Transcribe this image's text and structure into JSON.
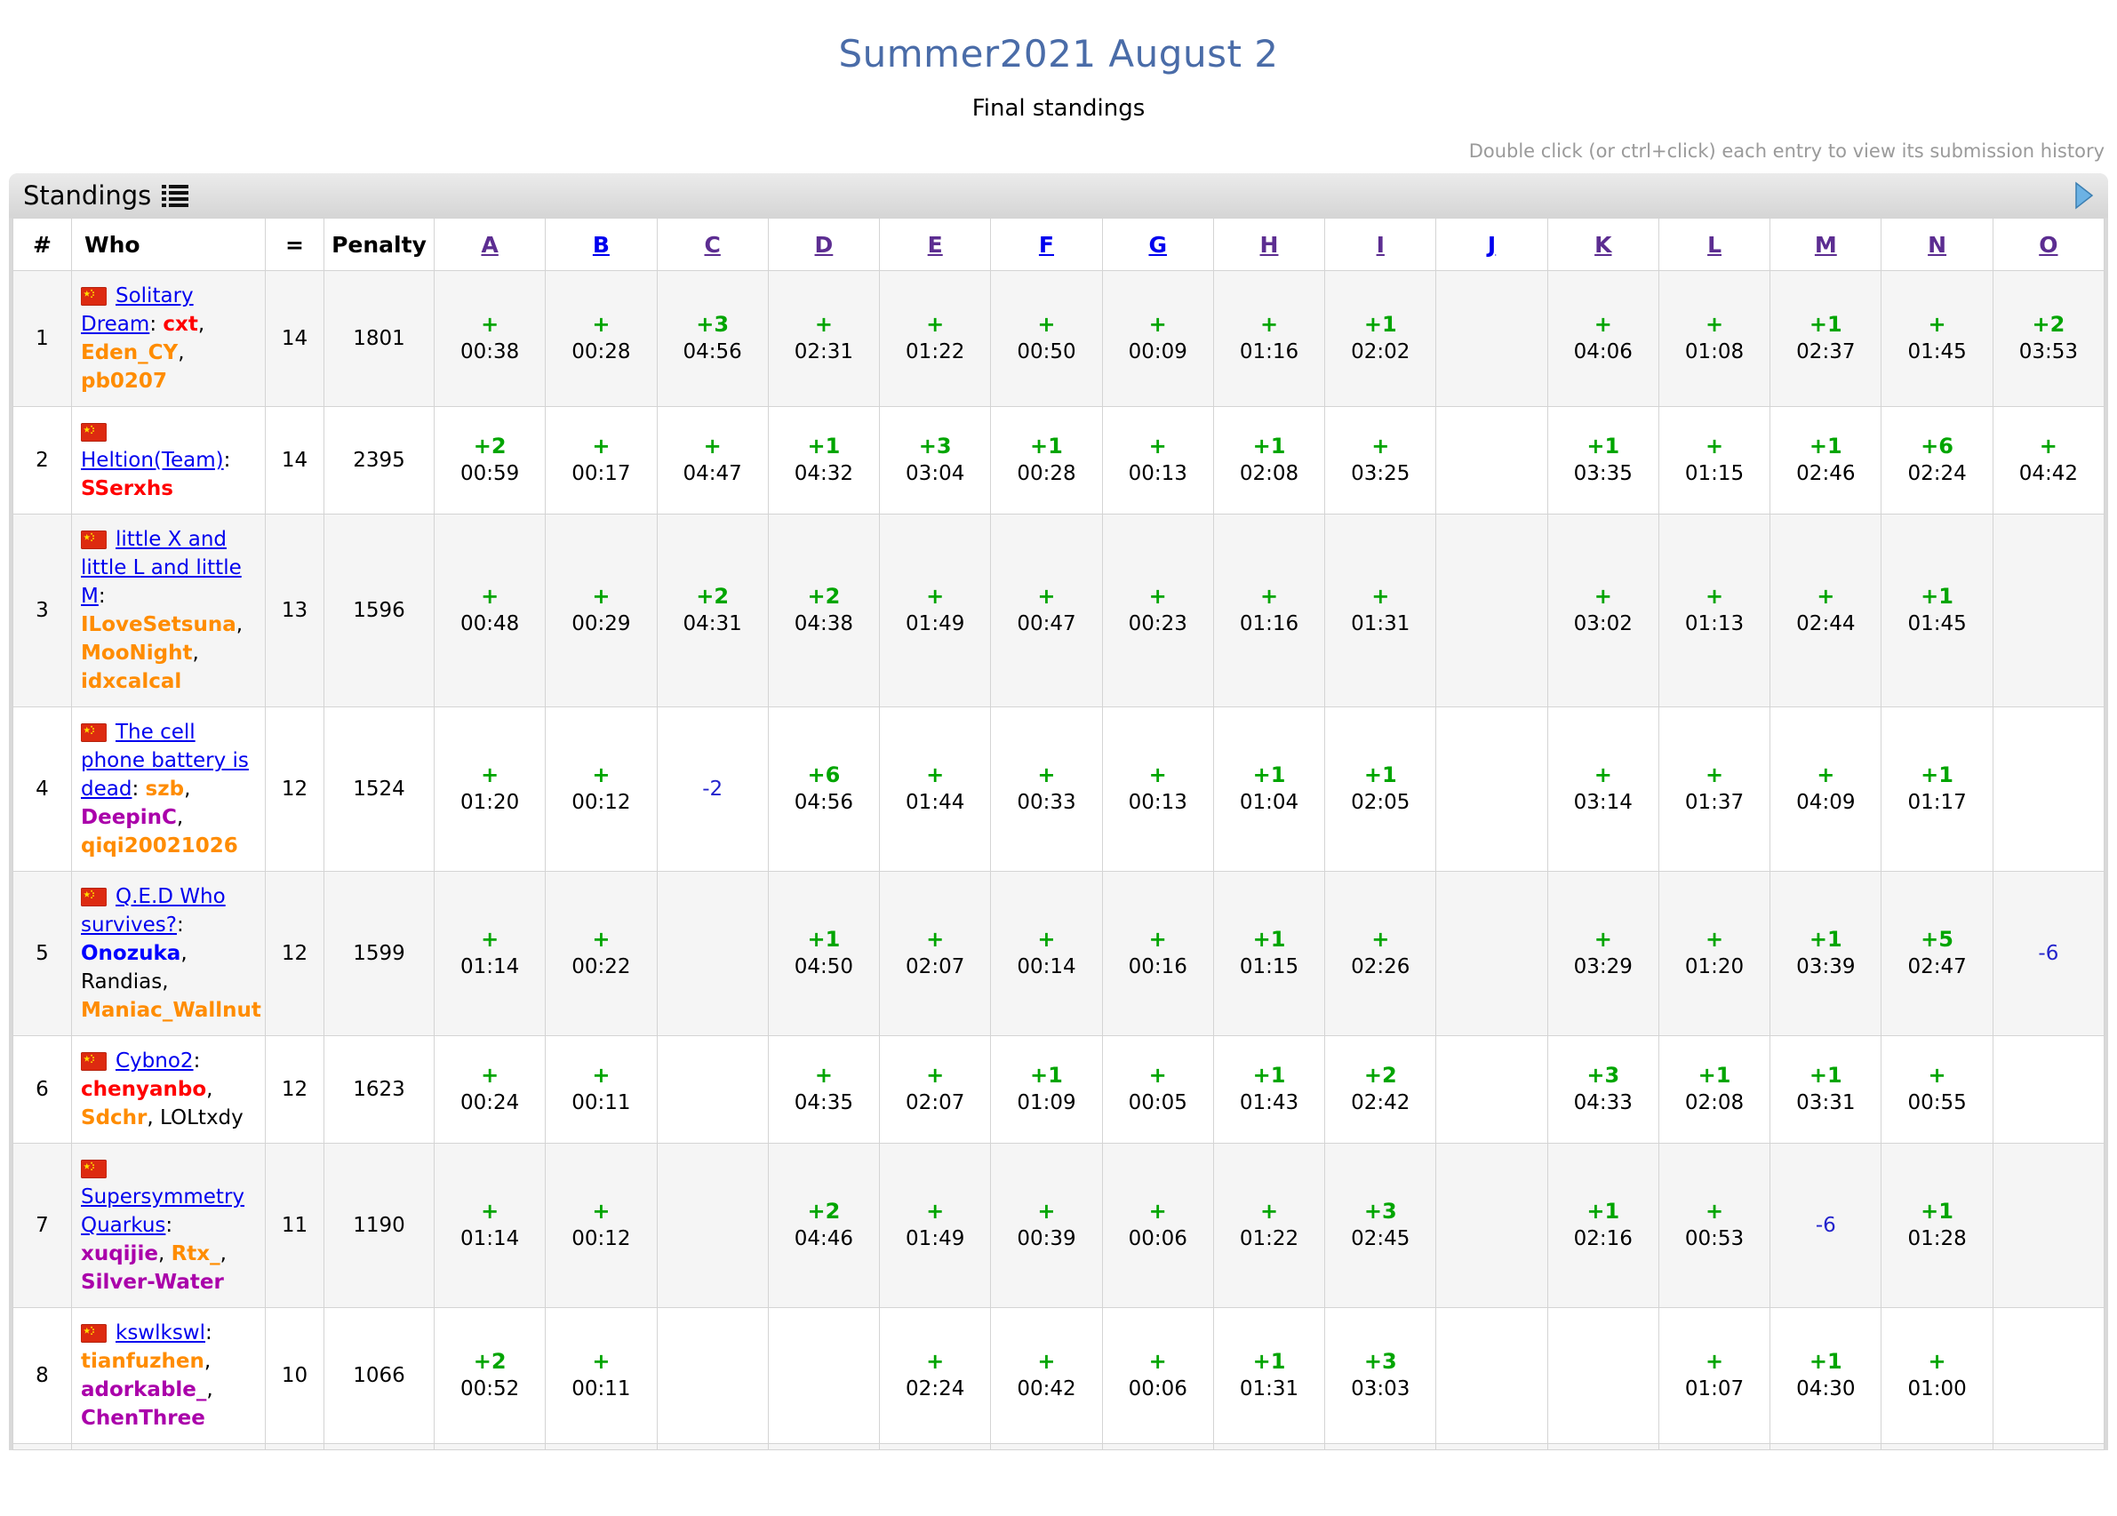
{
  "page": {
    "title": "Summer2021 August 2",
    "subtitle": "Final standings",
    "hint": "Double click (or ctrl+click) each entry to view its submission history"
  },
  "standings": {
    "caption": "Standings",
    "caption_icon": "list-icon",
    "nav_icon": "arrow-right-icon",
    "columns": {
      "rank": "#",
      "who": "Who",
      "solved": "=",
      "penalty": "Penalty"
    },
    "problems": [
      {
        "label": "A",
        "link_state": "visited"
      },
      {
        "label": "B",
        "link_state": "unvisited"
      },
      {
        "label": "C",
        "link_state": "visited"
      },
      {
        "label": "D",
        "link_state": "visited"
      },
      {
        "label": "E",
        "link_state": "visited"
      },
      {
        "label": "F",
        "link_state": "unvisited"
      },
      {
        "label": "G",
        "link_state": "unvisited"
      },
      {
        "label": "H",
        "link_state": "visited"
      },
      {
        "label": "I",
        "link_state": "visited"
      },
      {
        "label": "J",
        "link_state": "unvisited"
      },
      {
        "label": "K",
        "link_state": "visited"
      },
      {
        "label": "L",
        "link_state": "visited"
      },
      {
        "label": "M",
        "link_state": "visited"
      },
      {
        "label": "N",
        "link_state": "visited"
      },
      {
        "label": "O",
        "link_state": "visited"
      }
    ],
    "colors": {
      "title_blue": "#4a6ca8",
      "accepted_green": "#00a500",
      "rejected_blue": "#2323cc",
      "link_blue": "#0000ee",
      "visited_purple": "#5c2d91",
      "member_red": "#ff0000",
      "member_orange": "#ff8c00",
      "member_blue": "#0000ff",
      "member_violet": "#aa00aa",
      "member_black": "#000000",
      "flag": "china"
    },
    "rows": [
      {
        "rank": "1",
        "team": "Solitary Dream",
        "solved": "14",
        "penalty": "1801",
        "members": [
          {
            "name": "cxt",
            "color": "red"
          },
          {
            "name": "Eden_CY",
            "color": "orange"
          },
          {
            "name": "pb0207",
            "color": "orange"
          }
        ],
        "cells": [
          {
            "status": "ok",
            "tries": "+",
            "time": "00:38"
          },
          {
            "status": "ok",
            "tries": "+",
            "time": "00:28"
          },
          {
            "status": "ok",
            "tries": "+3",
            "time": "04:56"
          },
          {
            "status": "ok",
            "tries": "+",
            "time": "02:31"
          },
          {
            "status": "ok",
            "tries": "+",
            "time": "01:22"
          },
          {
            "status": "ok",
            "tries": "+",
            "time": "00:50"
          },
          {
            "status": "ok",
            "tries": "+",
            "time": "00:09"
          },
          {
            "status": "ok",
            "tries": "+",
            "time": "01:16"
          },
          {
            "status": "ok",
            "tries": "+1",
            "time": "02:02"
          },
          {
            "status": "none",
            "tries": "",
            "time": ""
          },
          {
            "status": "ok",
            "tries": "+",
            "time": "04:06"
          },
          {
            "status": "ok",
            "tries": "+",
            "time": "01:08"
          },
          {
            "status": "ok",
            "tries": "+1",
            "time": "02:37"
          },
          {
            "status": "ok",
            "tries": "+",
            "time": "01:45"
          },
          {
            "status": "ok",
            "tries": "+2",
            "time": "03:53"
          }
        ]
      },
      {
        "rank": "2",
        "team": "Heltion(Team)",
        "solved": "14",
        "penalty": "2395",
        "members": [
          {
            "name": "SSerxhs",
            "color": "red"
          }
        ],
        "cells": [
          {
            "status": "ok",
            "tries": "+2",
            "time": "00:59"
          },
          {
            "status": "ok",
            "tries": "+",
            "time": "00:17"
          },
          {
            "status": "ok",
            "tries": "+",
            "time": "04:47"
          },
          {
            "status": "ok",
            "tries": "+1",
            "time": "04:32"
          },
          {
            "status": "ok",
            "tries": "+3",
            "time": "03:04"
          },
          {
            "status": "ok",
            "tries": "+1",
            "time": "00:28"
          },
          {
            "status": "ok",
            "tries": "+",
            "time": "00:13"
          },
          {
            "status": "ok",
            "tries": "+1",
            "time": "02:08"
          },
          {
            "status": "ok",
            "tries": "+",
            "time": "03:25"
          },
          {
            "status": "none",
            "tries": "",
            "time": ""
          },
          {
            "status": "ok",
            "tries": "+1",
            "time": "03:35"
          },
          {
            "status": "ok",
            "tries": "+",
            "time": "01:15"
          },
          {
            "status": "ok",
            "tries": "+1",
            "time": "02:46"
          },
          {
            "status": "ok",
            "tries": "+6",
            "time": "02:24"
          },
          {
            "status": "ok",
            "tries": "+",
            "time": "04:42"
          }
        ]
      },
      {
        "rank": "3",
        "team": "little X and little L and little M",
        "solved": "13",
        "penalty": "1596",
        "members": [
          {
            "name": "ILoveSetsuna",
            "color": "orange"
          },
          {
            "name": "MooNight",
            "color": "orange"
          },
          {
            "name": "idxcalcal",
            "color": "orange"
          }
        ],
        "cells": [
          {
            "status": "ok",
            "tries": "+",
            "time": "00:48"
          },
          {
            "status": "ok",
            "tries": "+",
            "time": "00:29"
          },
          {
            "status": "ok",
            "tries": "+2",
            "time": "04:31"
          },
          {
            "status": "ok",
            "tries": "+2",
            "time": "04:38"
          },
          {
            "status": "ok",
            "tries": "+",
            "time": "01:49"
          },
          {
            "status": "ok",
            "tries": "+",
            "time": "00:47"
          },
          {
            "status": "ok",
            "tries": "+",
            "time": "00:23"
          },
          {
            "status": "ok",
            "tries": "+",
            "time": "01:16"
          },
          {
            "status": "ok",
            "tries": "+",
            "time": "01:31"
          },
          {
            "status": "none",
            "tries": "",
            "time": ""
          },
          {
            "status": "ok",
            "tries": "+",
            "time": "03:02"
          },
          {
            "status": "ok",
            "tries": "+",
            "time": "01:13"
          },
          {
            "status": "ok",
            "tries": "+",
            "time": "02:44"
          },
          {
            "status": "ok",
            "tries": "+1",
            "time": "01:45"
          },
          {
            "status": "none",
            "tries": "",
            "time": ""
          }
        ]
      },
      {
        "rank": "4",
        "team": "The cell phone battery is dead",
        "solved": "12",
        "penalty": "1524",
        "members": [
          {
            "name": "szb",
            "color": "orange"
          },
          {
            "name": "DeepinC",
            "color": "violet"
          },
          {
            "name": "qiqi20021026",
            "color": "orange"
          }
        ],
        "cells": [
          {
            "status": "ok",
            "tries": "+",
            "time": "01:20"
          },
          {
            "status": "ok",
            "tries": "+",
            "time": "00:12"
          },
          {
            "status": "fail",
            "tries": "-2",
            "time": ""
          },
          {
            "status": "ok",
            "tries": "+6",
            "time": "04:56"
          },
          {
            "status": "ok",
            "tries": "+",
            "time": "01:44"
          },
          {
            "status": "ok",
            "tries": "+",
            "time": "00:33"
          },
          {
            "status": "ok",
            "tries": "+",
            "time": "00:13"
          },
          {
            "status": "ok",
            "tries": "+1",
            "time": "01:04"
          },
          {
            "status": "ok",
            "tries": "+1",
            "time": "02:05"
          },
          {
            "status": "none",
            "tries": "",
            "time": ""
          },
          {
            "status": "ok",
            "tries": "+",
            "time": "03:14"
          },
          {
            "status": "ok",
            "tries": "+",
            "time": "01:37"
          },
          {
            "status": "ok",
            "tries": "+",
            "time": "04:09"
          },
          {
            "status": "ok",
            "tries": "+1",
            "time": "01:17"
          },
          {
            "status": "none",
            "tries": "",
            "time": ""
          }
        ]
      },
      {
        "rank": "5",
        "team": "Q.E.D Who survives?",
        "solved": "12",
        "penalty": "1599",
        "members": [
          {
            "name": "Onozuka",
            "color": "blue"
          },
          {
            "name": "Randias",
            "color": "black"
          },
          {
            "name": "Maniac_Wallnut",
            "color": "orange"
          }
        ],
        "cells": [
          {
            "status": "ok",
            "tries": "+",
            "time": "01:14"
          },
          {
            "status": "ok",
            "tries": "+",
            "time": "00:22"
          },
          {
            "status": "none",
            "tries": "",
            "time": ""
          },
          {
            "status": "ok",
            "tries": "+1",
            "time": "04:50"
          },
          {
            "status": "ok",
            "tries": "+",
            "time": "02:07"
          },
          {
            "status": "ok",
            "tries": "+",
            "time": "00:14"
          },
          {
            "status": "ok",
            "tries": "+",
            "time": "00:16"
          },
          {
            "status": "ok",
            "tries": "+1",
            "time": "01:15"
          },
          {
            "status": "ok",
            "tries": "+",
            "time": "02:26"
          },
          {
            "status": "none",
            "tries": "",
            "time": ""
          },
          {
            "status": "ok",
            "tries": "+",
            "time": "03:29"
          },
          {
            "status": "ok",
            "tries": "+",
            "time": "01:20"
          },
          {
            "status": "ok",
            "tries": "+1",
            "time": "03:39"
          },
          {
            "status": "ok",
            "tries": "+5",
            "time": "02:47"
          },
          {
            "status": "fail",
            "tries": "-6",
            "time": ""
          }
        ]
      },
      {
        "rank": "6",
        "team": "Cybno2",
        "solved": "12",
        "penalty": "1623",
        "members": [
          {
            "name": "chenyanbo",
            "color": "red"
          },
          {
            "name": "Sdchr",
            "color": "orange"
          },
          {
            "name": "LOLtxdy",
            "color": "black"
          }
        ],
        "cells": [
          {
            "status": "ok",
            "tries": "+",
            "time": "00:24"
          },
          {
            "status": "ok",
            "tries": "+",
            "time": "00:11"
          },
          {
            "status": "none",
            "tries": "",
            "time": ""
          },
          {
            "status": "ok",
            "tries": "+",
            "time": "04:35"
          },
          {
            "status": "ok",
            "tries": "+",
            "time": "02:07"
          },
          {
            "status": "ok",
            "tries": "+1",
            "time": "01:09"
          },
          {
            "status": "ok",
            "tries": "+",
            "time": "00:05"
          },
          {
            "status": "ok",
            "tries": "+1",
            "time": "01:43"
          },
          {
            "status": "ok",
            "tries": "+2",
            "time": "02:42"
          },
          {
            "status": "none",
            "tries": "",
            "time": ""
          },
          {
            "status": "ok",
            "tries": "+3",
            "time": "04:33"
          },
          {
            "status": "ok",
            "tries": "+1",
            "time": "02:08"
          },
          {
            "status": "ok",
            "tries": "+1",
            "time": "03:31"
          },
          {
            "status": "ok",
            "tries": "+",
            "time": "00:55"
          },
          {
            "status": "none",
            "tries": "",
            "time": ""
          }
        ]
      },
      {
        "rank": "7",
        "team": "Supersymmetry Quarkus",
        "solved": "11",
        "penalty": "1190",
        "members": [
          {
            "name": "xuqijie",
            "color": "violet"
          },
          {
            "name": "Rtx_",
            "color": "orange"
          },
          {
            "name": "Silver-Water",
            "color": "violet"
          }
        ],
        "cells": [
          {
            "status": "ok",
            "tries": "+",
            "time": "01:14"
          },
          {
            "status": "ok",
            "tries": "+",
            "time": "00:12"
          },
          {
            "status": "none",
            "tries": "",
            "time": ""
          },
          {
            "status": "ok",
            "tries": "+2",
            "time": "04:46"
          },
          {
            "status": "ok",
            "tries": "+",
            "time": "01:49"
          },
          {
            "status": "ok",
            "tries": "+",
            "time": "00:39"
          },
          {
            "status": "ok",
            "tries": "+",
            "time": "00:06"
          },
          {
            "status": "ok",
            "tries": "+",
            "time": "01:22"
          },
          {
            "status": "ok",
            "tries": "+3",
            "time": "02:45"
          },
          {
            "status": "none",
            "tries": "",
            "time": ""
          },
          {
            "status": "ok",
            "tries": "+1",
            "time": "02:16"
          },
          {
            "status": "ok",
            "tries": "+",
            "time": "00:53"
          },
          {
            "status": "fail",
            "tries": "-6",
            "time": ""
          },
          {
            "status": "ok",
            "tries": "+1",
            "time": "01:28"
          },
          {
            "status": "none",
            "tries": "",
            "time": ""
          }
        ]
      },
      {
        "rank": "8",
        "team": "kswlkswl",
        "solved": "10",
        "penalty": "1066",
        "members": [
          {
            "name": "tianfuzhen",
            "color": "orange"
          },
          {
            "name": "adorkable_",
            "color": "violet"
          },
          {
            "name": "ChenThree",
            "color": "violet"
          }
        ],
        "cells": [
          {
            "status": "ok",
            "tries": "+2",
            "time": "00:52"
          },
          {
            "status": "ok",
            "tries": "+",
            "time": "00:11"
          },
          {
            "status": "none",
            "tries": "",
            "time": ""
          },
          {
            "status": "none",
            "tries": "",
            "time": ""
          },
          {
            "status": "ok",
            "tries": "+",
            "time": "02:24"
          },
          {
            "status": "ok",
            "tries": "+",
            "time": "00:42"
          },
          {
            "status": "ok",
            "tries": "+",
            "time": "00:06"
          },
          {
            "status": "ok",
            "tries": "+1",
            "time": "01:31"
          },
          {
            "status": "ok",
            "tries": "+3",
            "time": "03:03"
          },
          {
            "status": "none",
            "tries": "",
            "time": ""
          },
          {
            "status": "none",
            "tries": "",
            "time": ""
          },
          {
            "status": "ok",
            "tries": "+",
            "time": "01:07"
          },
          {
            "status": "ok",
            "tries": "+1",
            "time": "04:30"
          },
          {
            "status": "ok",
            "tries": "+",
            "time": "01:00"
          },
          {
            "status": "none",
            "tries": "",
            "time": ""
          }
        ]
      }
    ]
  }
}
